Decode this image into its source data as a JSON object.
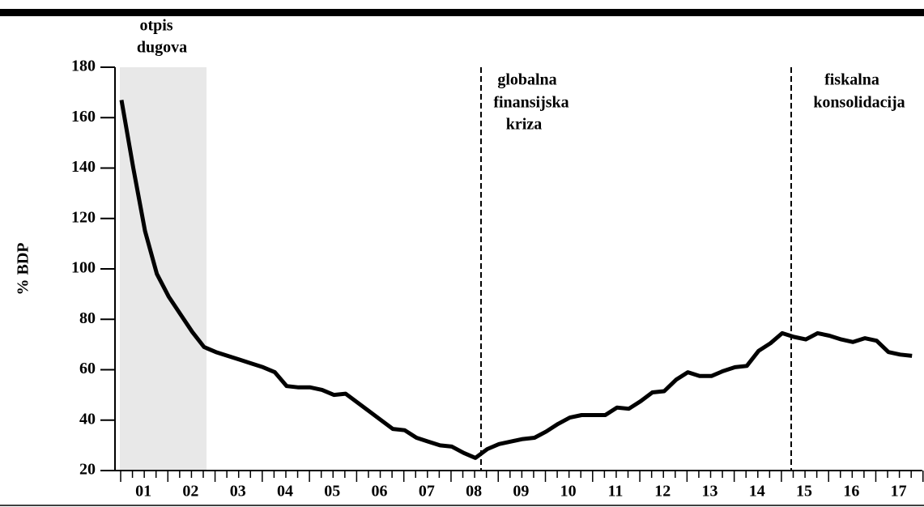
{
  "chart_data": {
    "type": "line",
    "y_label": "% BDP",
    "annotations": [
      [
        "otpis",
        "dugova"
      ],
      [
        "globalna",
        "finansijska",
        "kriza"
      ],
      [
        "fiskalna",
        "konsolidacija"
      ]
    ],
    "categories": [
      "01",
      null,
      null,
      null,
      "02",
      null,
      null,
      null,
      "03",
      null,
      null,
      null,
      "04",
      null,
      null,
      null,
      "05",
      null,
      null,
      null,
      "06",
      null,
      null,
      null,
      "07",
      null,
      null,
      null,
      "08",
      null,
      null,
      null,
      "09",
      null,
      null,
      null,
      "10",
      null,
      null,
      null,
      "11",
      null,
      null,
      null,
      "12",
      null,
      null,
      null,
      "13",
      null,
      null,
      null,
      "14",
      null,
      null,
      null,
      "15",
      null,
      null,
      null,
      "16",
      null,
      null,
      null,
      "17",
      null,
      null,
      null
    ],
    "series": [
      {
        "name": "% BDP",
        "color": "#000000",
        "values": [
          167,
          140,
          115,
          98,
          89,
          82,
          75,
          69,
          67,
          65.5,
          64,
          62.5,
          61,
          59,
          53.5,
          53,
          53,
          52,
          50,
          50.5,
          47,
          43.5,
          40,
          36.5,
          36,
          33,
          31.5,
          30,
          29.5,
          27,
          25,
          28.5,
          30.5,
          31.5,
          32.5,
          33,
          35.5,
          38.5,
          41,
          42,
          42,
          42,
          45,
          44.5,
          47.5,
          51,
          51.5,
          56,
          59,
          57.5,
          57.5,
          59.5,
          61,
          61.5,
          67.5,
          70.5,
          74.5,
          73,
          72,
          74.5,
          73.5,
          72,
          71,
          72.5,
          71.5,
          67,
          66,
          65.5
        ]
      }
    ],
    "ylim": [
      20,
      180
    ],
    "yticks": [
      20,
      40,
      60,
      80,
      100,
      120,
      140,
      160,
      180
    ],
    "grid": false
  }
}
